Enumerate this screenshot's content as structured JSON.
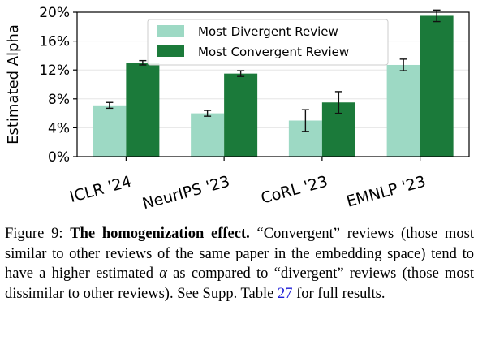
{
  "chart_data": {
    "type": "bar",
    "ylabel": "Estimated Alpha",
    "ylim": [
      0,
      0.2
    ],
    "yticks": [
      0,
      0.04,
      0.08,
      0.12,
      0.16,
      0.2
    ],
    "ytick_labels": [
      "0%",
      "4%",
      "8%",
      "12%",
      "16%",
      "20%"
    ],
    "categories": [
      "ICLR '24",
      "NeurIPS '23",
      "CoRL '23",
      "EMNLP '23"
    ],
    "series": [
      {
        "name": "Most Divergent Review",
        "color": "#9dd9c4",
        "values": [
          0.071,
          0.06,
          0.05,
          0.127
        ],
        "err": [
          0.004,
          0.004,
          0.015,
          0.008
        ]
      },
      {
        "name": "Most Convergent Review",
        "color": "#1b7a3a",
        "values": [
          0.13,
          0.115,
          0.075,
          0.195
        ],
        "err": [
          0.003,
          0.004,
          0.015,
          0.008
        ]
      }
    ],
    "legend_position": "top-center",
    "grid": "y"
  },
  "caption": {
    "prefix": "Figure 9: ",
    "bold": "The homogenization effect.",
    "text1": " “Convergent” reviews (those most similar to other reviews of the same paper in the embedding space) tend to have a higher estimated ",
    "alpha": "α",
    "text2": " as compared to “divergent” reviews (those most dissimilar to other reviews). See Supp. Table ",
    "link": "27",
    "text3": " for full results."
  }
}
